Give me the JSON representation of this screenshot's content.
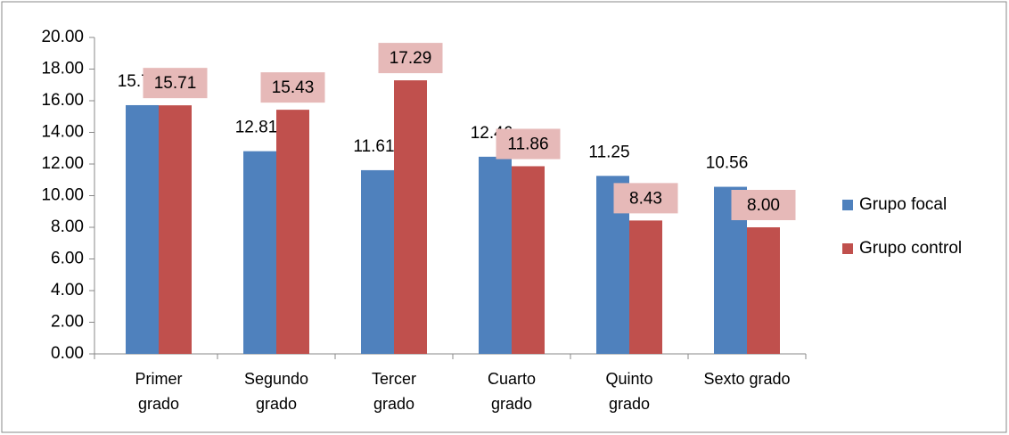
{
  "chart_data": {
    "type": "bar",
    "categories": [
      "Primer grado",
      "Segundo grado",
      "Tercer grado",
      "Cuarto grado",
      "Quinto grado",
      "Sexto grado"
    ],
    "series": [
      {
        "name": "Grupo focal",
        "color": "#4f81bd",
        "values": [
          15.72,
          12.81,
          11.61,
          12.46,
          11.25,
          10.56
        ]
      },
      {
        "name": "Grupo control",
        "color": "#c0504d",
        "values": [
          15.71,
          15.43,
          17.29,
          11.86,
          8.43,
          8
        ],
        "value_labels": [
          "15.71",
          "15.43",
          "17.29",
          "11.86",
          "8.43",
          "8.00"
        ]
      }
    ],
    "ylim": [
      0,
      20
    ],
    "yticks": [
      {
        "value": 0,
        "label": "0.00"
      },
      {
        "value": 2,
        "label": "2.00"
      },
      {
        "value": 4,
        "label": "4.00"
      },
      {
        "value": 6,
        "label": "6.00"
      },
      {
        "value": 8,
        "label": "8.00"
      },
      {
        "value": 10,
        "label": "10.00"
      },
      {
        "value": 12,
        "label": "12.00"
      },
      {
        "value": 14,
        "label": "14.00"
      },
      {
        "value": 16,
        "label": "16.00"
      },
      {
        "value": 18,
        "label": "18.00"
      },
      {
        "value": 20,
        "label": "20.00"
      }
    ],
    "grid": false,
    "legend": "right",
    "label_box_color": "#e6b9b8"
  }
}
